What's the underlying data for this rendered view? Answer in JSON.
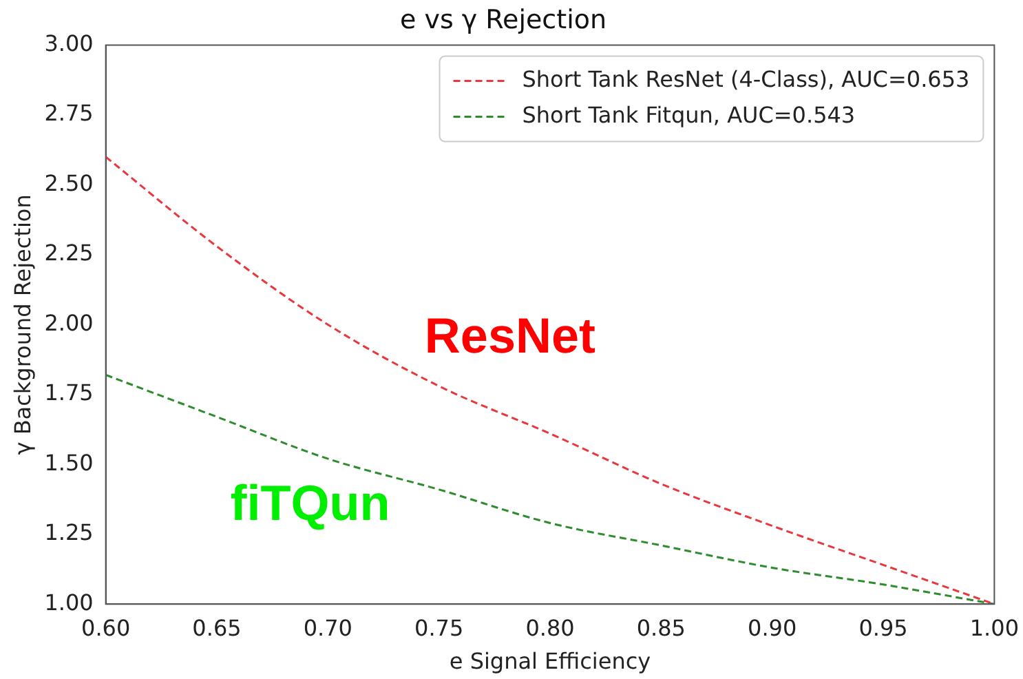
{
  "chart_data": {
    "type": "line",
    "title": "e vs γ Rejection",
    "xlabel": "e Signal Efficiency",
    "ylabel": "γ Background Rejection",
    "x": [
      0.6,
      0.65,
      0.7,
      0.75,
      0.8,
      0.85,
      0.9,
      0.95,
      1.0
    ],
    "series": [
      {
        "name": "Short Tank ResNet (4-Class), AUC=0.653",
        "color": "#e8383d",
        "values": [
          2.6,
          2.28,
          2.0,
          1.78,
          1.61,
          1.43,
          1.28,
          1.14,
          1.0
        ]
      },
      {
        "name": "Short Tank Fitqun, AUC=0.543",
        "color": "#2e8b2e",
        "values": [
          1.82,
          1.67,
          1.52,
          1.41,
          1.29,
          1.21,
          1.13,
          1.07,
          1.0
        ]
      }
    ],
    "annotations": [
      "ResNet",
      "fiTQun"
    ],
    "xlim": [
      0.6,
      1.0
    ],
    "xticks": [
      {
        "value": 0.6,
        "label": "0.60"
      },
      {
        "value": 0.65,
        "label": "0.65"
      },
      {
        "value": 0.7,
        "label": "0.70"
      },
      {
        "value": 0.75,
        "label": "0.75"
      },
      {
        "value": 0.8,
        "label": "0.80"
      },
      {
        "value": 0.85,
        "label": "0.85"
      },
      {
        "value": 0.9,
        "label": "0.90"
      },
      {
        "value": 0.95,
        "label": "0.95"
      },
      {
        "value": 1.0,
        "label": "1.00"
      }
    ],
    "ylim": [
      1.0,
      3.0
    ],
    "yticks": [
      {
        "value": 1.0,
        "label": "1.00"
      },
      {
        "value": 1.25,
        "label": "1.25"
      },
      {
        "value": 1.5,
        "label": "1.50"
      },
      {
        "value": 1.75,
        "label": "1.75"
      },
      {
        "value": 2.0,
        "label": "2.00"
      },
      {
        "value": 2.25,
        "label": "2.25"
      },
      {
        "value": 2.5,
        "label": "2.50"
      },
      {
        "value": 2.75,
        "label": "2.75"
      },
      {
        "value": 3.0,
        "label": "3.00"
      }
    ],
    "grid": false,
    "legend": "top right",
    "marker": "none",
    "line_style": "dashed"
  }
}
